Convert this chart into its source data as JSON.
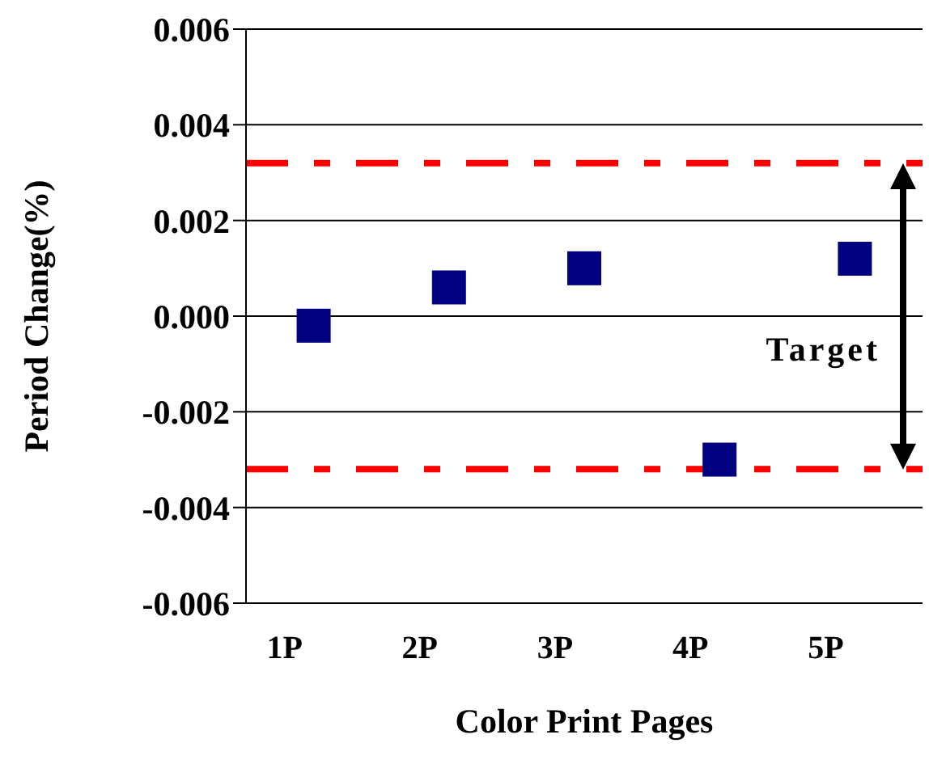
{
  "chart_data": {
    "type": "scatter",
    "xlabel": "Color Print Pages",
    "ylabel": "Period Change(%)",
    "categories": [
      "1P",
      "2P",
      "3P",
      "4P",
      "5P"
    ],
    "series": [
      {
        "color": "#000080",
        "values": [
          -0.0002,
          0.0006,
          0.001,
          -0.003,
          0.0012
        ]
      }
    ],
    "marker": "square",
    "ylim": [
      -0.006,
      0.006
    ],
    "yticks": [
      -0.006,
      -0.004,
      -0.002,
      {
        "value": 0,
        "label": "0.000"
      },
      0.002,
      0.004,
      0.006
    ],
    "grid": "y",
    "ref_lines": [
      {
        "axis": "y",
        "value": 0.0032,
        "color": "#ff0000",
        "line_style": "dashed"
      },
      {
        "axis": "y",
        "value": -0.0032,
        "color": "#ff0000",
        "line_style": "dashed"
      }
    ],
    "annotations": [
      "Target"
    ]
  }
}
